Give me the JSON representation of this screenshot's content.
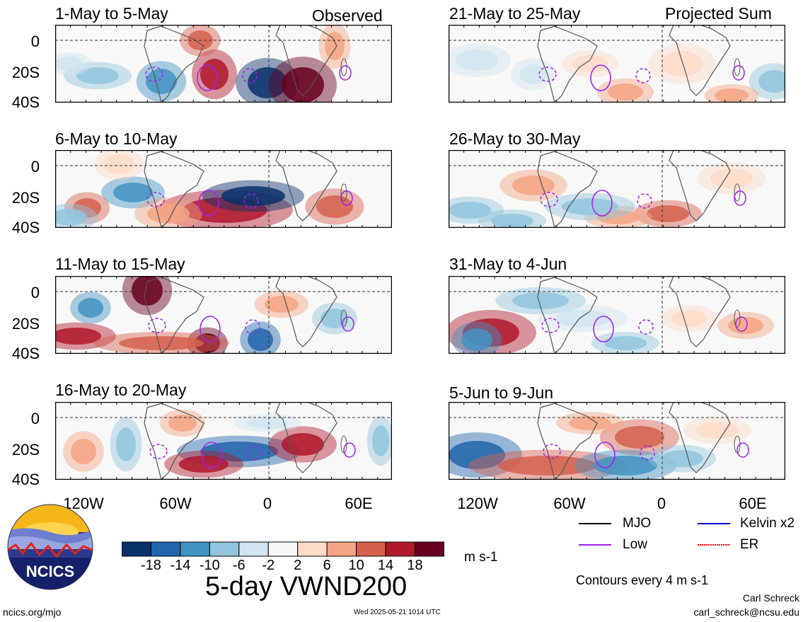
{
  "header": {
    "observed_label": "Observed",
    "projected_label": "Projected Sum"
  },
  "panels": [
    {
      "title": "1-May to 5-May"
    },
    {
      "title": "6-May to 10-May"
    },
    {
      "title": "11-May to 15-May"
    },
    {
      "title": "16-May to 20-May"
    },
    {
      "title": "21-May to 25-May"
    },
    {
      "title": "26-May to 30-May"
    },
    {
      "title": "31-May to 4-Jun"
    },
    {
      "title": "5-Jun to 9-Jun"
    }
  ],
  "lat_labels": [
    "0",
    "20S",
    "40S"
  ],
  "lon_labels": [
    "120W",
    "60W",
    "0",
    "60E"
  ],
  "colorbar": {
    "levels": [
      "-18",
      "-14",
      "-10",
      "-6",
      "-2",
      "2",
      "6",
      "10",
      "14",
      "18"
    ],
    "colors": [
      "#08306b",
      "#2166ac",
      "#4393c3",
      "#92c5de",
      "#d1e5f0",
      "#f7f7f7",
      "#fddbc7",
      "#f4a582",
      "#d6604d",
      "#b2182b",
      "#67001f"
    ],
    "units": "m s-1"
  },
  "legend": {
    "items": [
      {
        "label": "MJO",
        "color": "#000000"
      },
      {
        "label": "Kelvin x2",
        "color": "#0000cc"
      },
      {
        "label": "Low",
        "color": "#a020f0"
      },
      {
        "label": "ER",
        "color": "#e00000"
      }
    ],
    "contours_note": "Contours every 4 m s-1"
  },
  "title": "5-day VWND200",
  "logo": {
    "text": "NCICS"
  },
  "footer": {
    "url": "ncics.org/mjo",
    "timestamp": "Wed 2025-05-21 1014 UTC",
    "author": "Carl Schreck",
    "email": "carl_schreck@ncsu.edu"
  }
}
